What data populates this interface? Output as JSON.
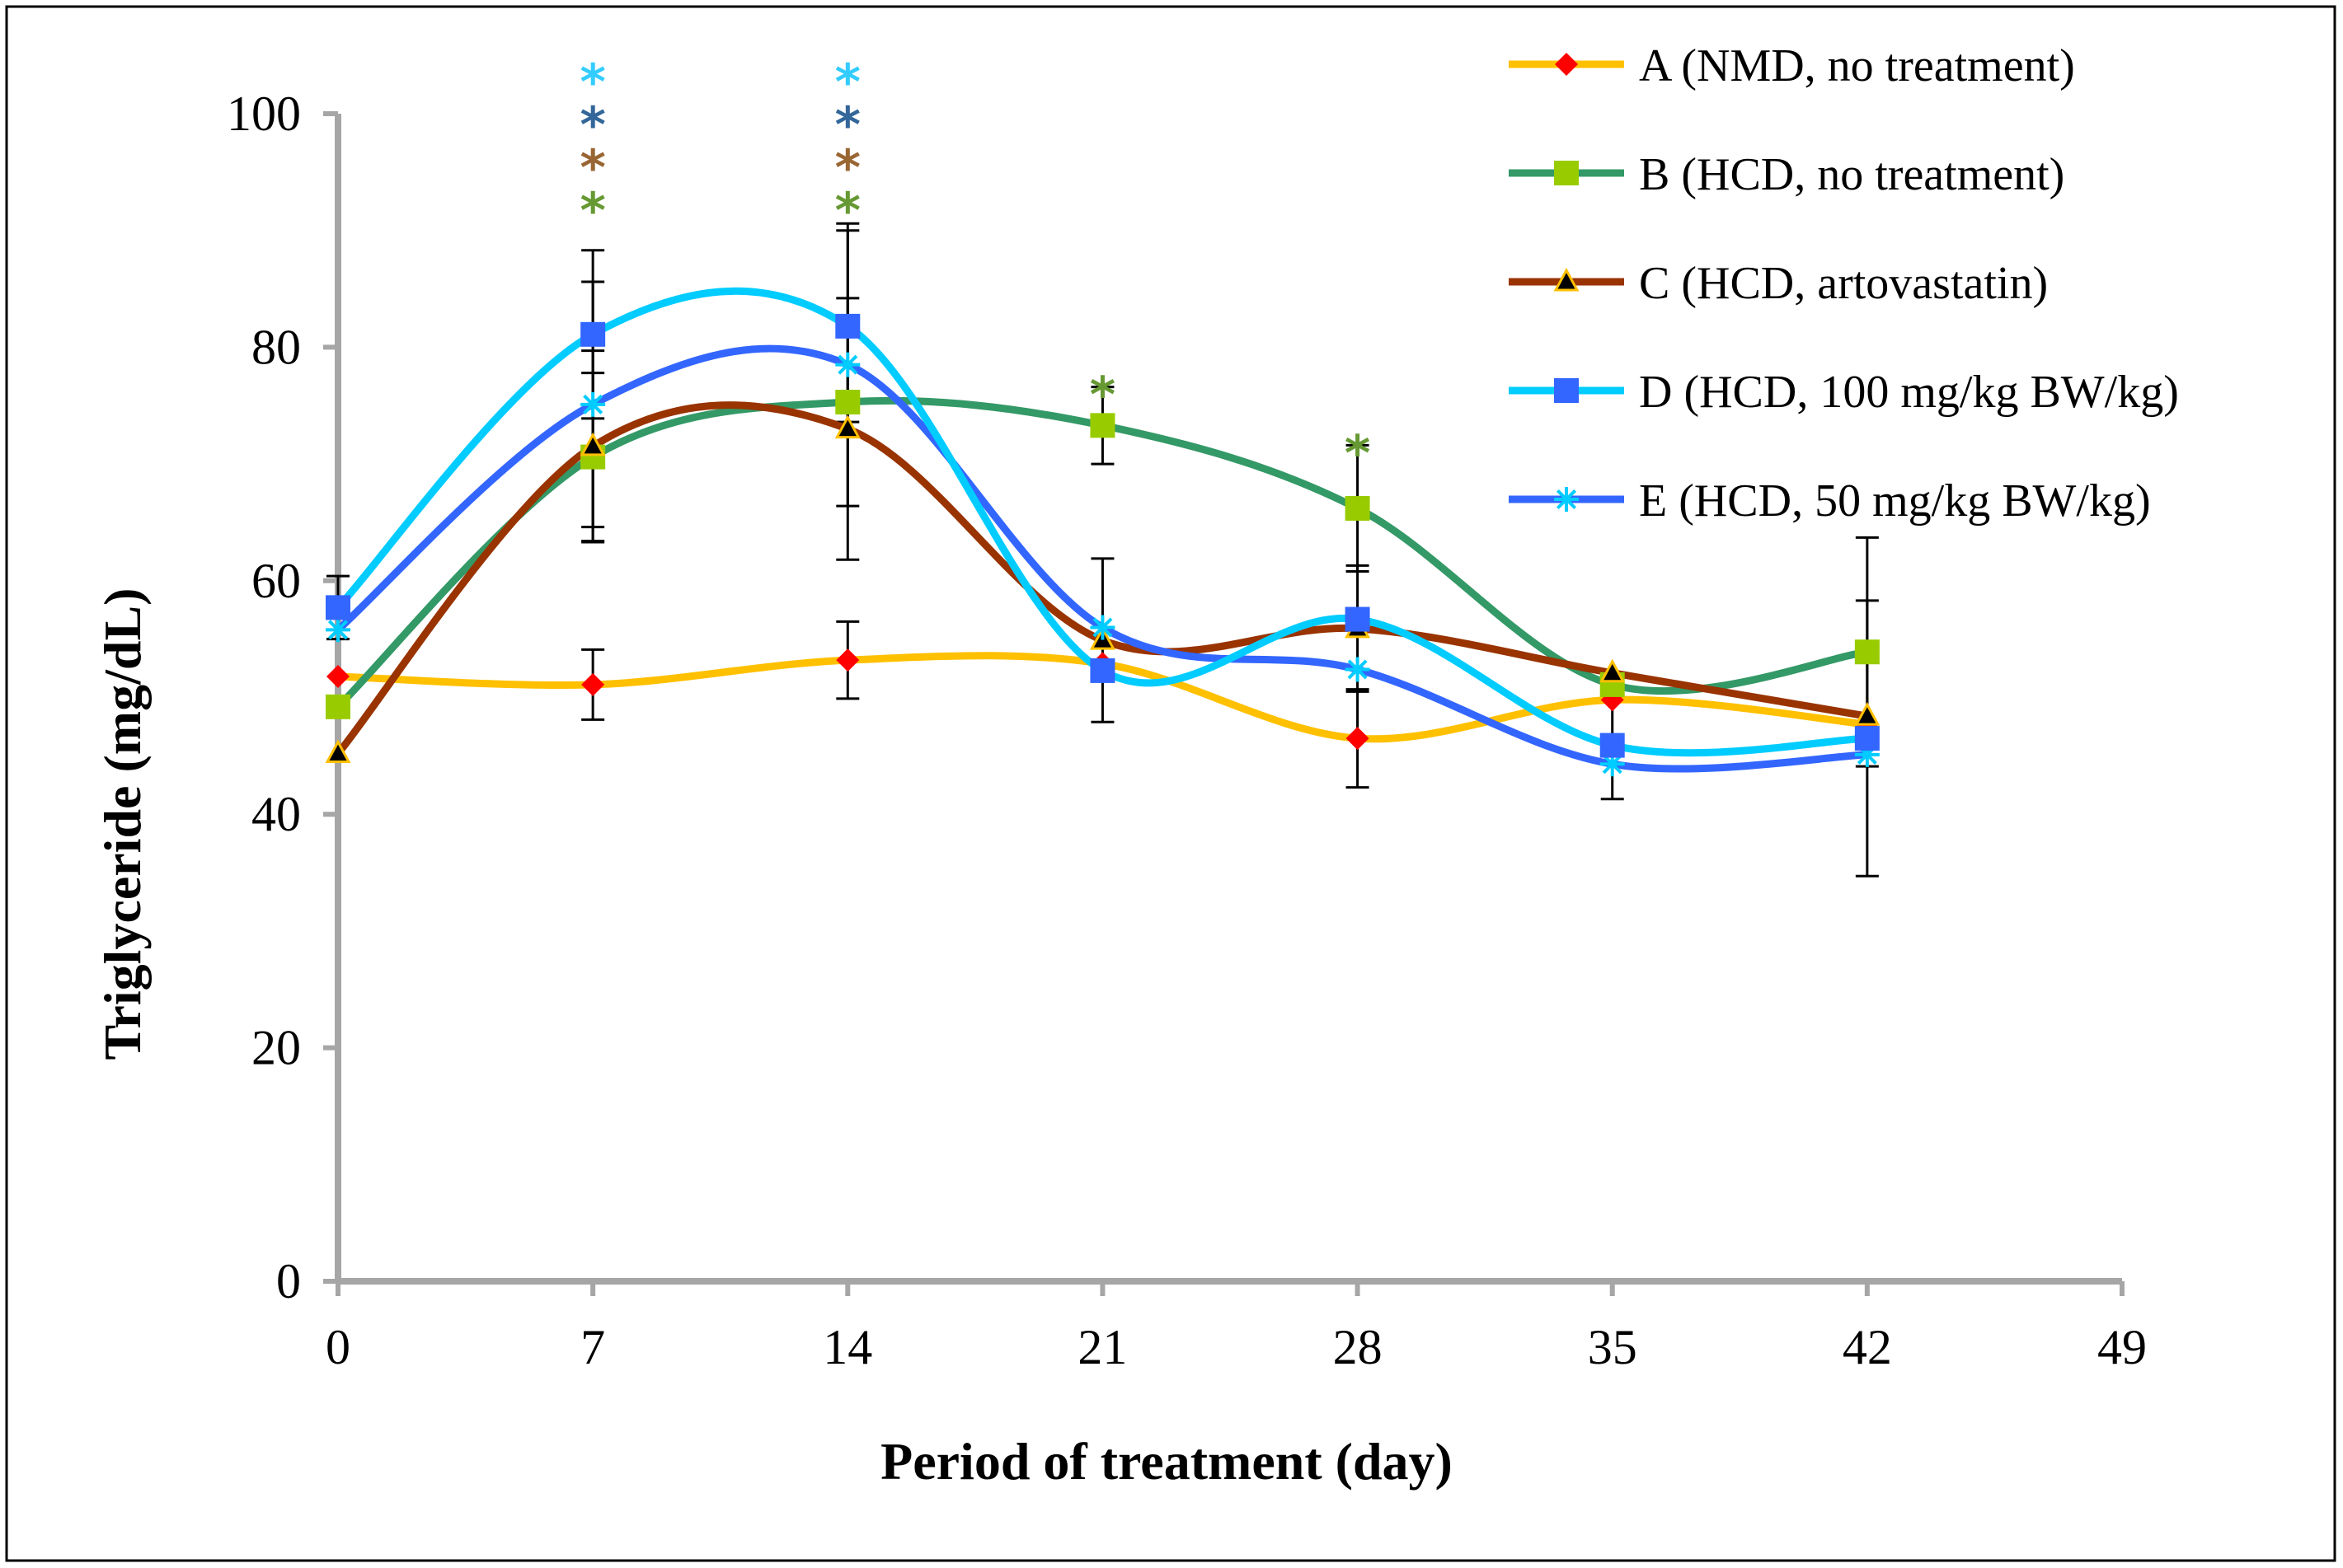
{
  "chart_data": {
    "type": "line",
    "xlabel": "Period of treatment (day)",
    "ylabel": "Triglyceride (mg/dL)",
    "xlim": [
      0,
      49
    ],
    "ylim": [
      0,
      100
    ],
    "xticks": [
      0,
      7,
      14,
      21,
      28,
      35,
      42,
      49
    ],
    "yticks": [
      0,
      20,
      40,
      60,
      80,
      100
    ],
    "x": [
      0,
      7,
      14,
      21,
      28,
      35,
      42
    ],
    "grid": false,
    "legend_position": "top-right",
    "series": [
      {
        "name": "A (NMD, no treatment)",
        "line_color": "#FFC000",
        "marker": "diamond",
        "marker_color": "#FF0000",
        "values": [
          51.8,
          51.1,
          53.2,
          52.9,
          46.5,
          49.8,
          47.7
        ],
        "errors": [
          0,
          3,
          3.3,
          0,
          4.2,
          0,
          0
        ]
      },
      {
        "name": "B (HCD, no treatment)",
        "line_color": "#339966",
        "marker": "square",
        "marker_color": "#99CC00",
        "values": [
          49.2,
          70.6,
          75.3,
          73.3,
          66.2,
          51.1,
          53.9
        ],
        "errors": [
          0,
          7.2,
          0,
          3.3,
          5.4,
          0,
          9.8
        ]
      },
      {
        "name": "C (HCD, artovastatin)",
        "line_color": "#993300",
        "marker": "triangle",
        "marker_color": "#000000",
        "values": [
          45.2,
          71.5,
          73.0,
          54.9,
          55.9,
          52.1,
          48.4
        ],
        "errors": [
          0,
          8.2,
          11.2,
          7.0,
          5.4,
          0,
          0
        ]
      },
      {
        "name": "D (HCD, 100 mg/kg BW/kg)",
        "line_color": "#00CCFF",
        "marker": "square",
        "marker_color": "#3366FF",
        "values": [
          57.7,
          81.1,
          81.8,
          52.3,
          56.7,
          45.9,
          46.5
        ],
        "errors": [
          2.7,
          7.2,
          8.2,
          0,
          0,
          4.6,
          11.8
        ]
      },
      {
        "name": "E (HCD, 50 mg/kg BW/kg)",
        "line_color": "#3366FF",
        "marker": "star",
        "marker_color": "#00CCFF",
        "values": [
          55.8,
          75.1,
          78.5,
          56.0,
          52.4,
          44.3,
          45.1
        ],
        "errors": [
          0,
          10.5,
          12.1,
          0,
          0,
          0,
          0
        ]
      }
    ],
    "significance_marks": [
      {
        "day": 7,
        "symbols": [
          {
            "text": "*",
            "color": "#33CCFF"
          },
          {
            "text": "*",
            "color": "#336699"
          },
          {
            "text": "*",
            "color": "#996633"
          },
          {
            "text": "*",
            "color": "#669933"
          }
        ]
      },
      {
        "day": 14,
        "symbols": [
          {
            "text": "*",
            "color": "#33CCFF"
          },
          {
            "text": "*",
            "color": "#336699"
          },
          {
            "text": "*",
            "color": "#996633"
          },
          {
            "text": "*",
            "color": "#669933"
          }
        ]
      },
      {
        "day": 21,
        "symbols": [
          {
            "text": "*",
            "color": "#669933"
          }
        ]
      },
      {
        "day": 28,
        "symbols": [
          {
            "text": "*",
            "color": "#669933"
          }
        ]
      }
    ]
  }
}
